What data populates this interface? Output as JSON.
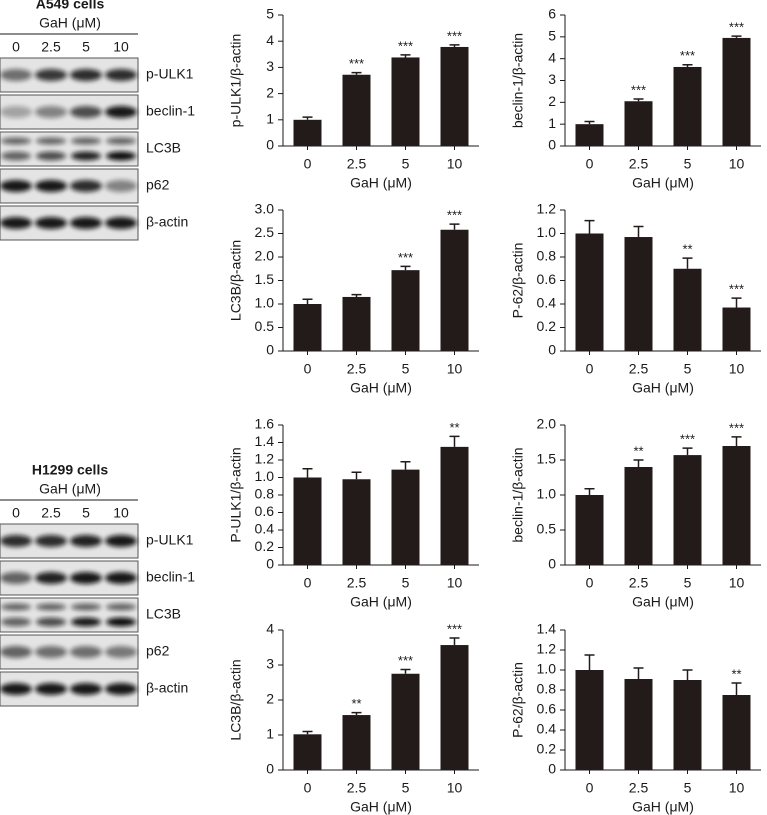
{
  "blots": [
    {
      "title": "A549 cells",
      "dose_label": "GaH (μM)",
      "doses": [
        "0",
        "2.5",
        "5",
        "10"
      ],
      "bands": [
        "p-ULK1",
        "beclin-1",
        "LC3B",
        "p62",
        "β-actin"
      ]
    },
    {
      "title": "H1299 cells",
      "dose_label": "GaH (μM)",
      "doses": [
        "0",
        "2.5",
        "5",
        "10"
      ],
      "bands": [
        "p-ULK1",
        "beclin-1",
        "LC3B",
        "p62",
        "β-actin"
      ]
    }
  ],
  "chart_data": [
    {
      "type": "bar",
      "ylabel": "p-ULK1/β-actin",
      "xlabel": "GaH (μM)",
      "categories": [
        "0",
        "2.5",
        "5",
        "10"
      ],
      "values": [
        1.0,
        2.72,
        3.38,
        3.78
      ],
      "errors": [
        0.1,
        0.08,
        0.1,
        0.08
      ],
      "annotations": [
        null,
        "***",
        "***",
        "***"
      ],
      "color": "#231a1a",
      "ylim": [
        0,
        5
      ],
      "yticks": [
        0,
        1,
        2,
        3,
        4,
        5
      ]
    },
    {
      "type": "bar",
      "ylabel": "beclin-1/β-actin",
      "xlabel": "GaH (μM)",
      "categories": [
        "0",
        "2.5",
        "5",
        "10"
      ],
      "values": [
        1.0,
        2.05,
        3.62,
        4.95
      ],
      "errors": [
        0.12,
        0.1,
        0.1,
        0.08
      ],
      "annotations": [
        null,
        "***",
        "***",
        "***"
      ],
      "color": "#231a1a",
      "ylim": [
        0,
        6
      ],
      "yticks": [
        0,
        1,
        2,
        3,
        4,
        5,
        6
      ]
    },
    {
      "type": "bar",
      "ylabel": "LC3B/β-actin",
      "xlabel": "GaH (μM)",
      "categories": [
        "0",
        "2.5",
        "5",
        "10"
      ],
      "values": [
        1.0,
        1.15,
        1.72,
        2.58
      ],
      "errors": [
        0.1,
        0.05,
        0.08,
        0.12
      ],
      "annotations": [
        null,
        null,
        "***",
        "***"
      ],
      "color": "#231a1a",
      "ylim": [
        0,
        3
      ],
      "yticks": [
        0,
        0.5,
        {
          "value": 1,
          "label": "1.0"
        },
        1.5,
        {
          "value": 2,
          "label": "2.0"
        },
        2.5,
        {
          "value": 3,
          "label": "3.0"
        }
      ]
    },
    {
      "type": "bar",
      "ylabel": "P-62/β-actin",
      "xlabel": "GaH (μM)",
      "categories": [
        "0",
        "2.5",
        "5",
        "10"
      ],
      "values": [
        1.0,
        0.97,
        0.7,
        0.37
      ],
      "errors": [
        0.11,
        0.09,
        0.09,
        0.08
      ],
      "annotations": [
        null,
        null,
        "**",
        "***"
      ],
      "color": "#231a1a",
      "ylim": [
        0,
        1.2
      ],
      "yticks": [
        0,
        0.2,
        0.4,
        0.6,
        0.8,
        {
          "value": 1,
          "label": "1.0"
        },
        1.2
      ]
    },
    {
      "type": "bar",
      "ylabel": "P-ULK1/β-actin",
      "xlabel": "GaH (μM)",
      "categories": [
        "0",
        "2.5",
        "5",
        "10"
      ],
      "values": [
        1.0,
        0.98,
        1.09,
        1.35
      ],
      "errors": [
        0.1,
        0.08,
        0.09,
        0.12
      ],
      "annotations": [
        null,
        null,
        null,
        "**"
      ],
      "color": "#231a1a",
      "ylim": [
        0,
        1.6
      ],
      "yticks": [
        0,
        0.2,
        0.4,
        0.6,
        0.8,
        {
          "value": 1,
          "label": "1.0"
        },
        1.2,
        1.4,
        1.6
      ]
    },
    {
      "type": "bar",
      "ylabel": "beclin-1/β-actin",
      "xlabel": "GaH (μM)",
      "categories": [
        "0",
        "2.5",
        "5",
        "10"
      ],
      "values": [
        1.0,
        1.4,
        1.57,
        1.7
      ],
      "errors": [
        0.09,
        0.1,
        0.1,
        0.13
      ],
      "annotations": [
        null,
        "**",
        "***",
        "***"
      ],
      "color": "#231a1a",
      "ylim": [
        0,
        2
      ],
      "yticks": [
        0,
        0.5,
        {
          "value": 1,
          "label": "1.0"
        },
        1.5,
        {
          "value": 2,
          "label": "2.0"
        }
      ]
    },
    {
      "type": "bar",
      "ylabel": "LC3B/β-actin",
      "xlabel": "GaH (μM)",
      "categories": [
        "0",
        "2.5",
        "5",
        "10"
      ],
      "values": [
        1.02,
        1.57,
        2.75,
        3.57
      ],
      "errors": [
        0.08,
        0.07,
        0.12,
        0.2
      ],
      "annotations": [
        null,
        "**",
        "***",
        "***"
      ],
      "color": "#231a1a",
      "ylim": [
        0,
        4
      ],
      "yticks": [
        0,
        1,
        2,
        3,
        4
      ]
    },
    {
      "type": "bar",
      "ylabel": "P-62/β-actin",
      "xlabel": "GaH (μM)",
      "categories": [
        "0",
        "2.5",
        "5",
        "10"
      ],
      "values": [
        1.0,
        0.91,
        0.9,
        0.75
      ],
      "errors": [
        0.15,
        0.11,
        0.1,
        0.12
      ],
      "annotations": [
        null,
        null,
        null,
        "**"
      ],
      "color": "#231a1a",
      "ylim": [
        0,
        1.4
      ],
      "yticks": [
        0,
        0.2,
        0.4,
        0.6,
        0.8,
        {
          "value": 1,
          "label": "1.0"
        },
        1.2,
        1.4
      ]
    }
  ]
}
